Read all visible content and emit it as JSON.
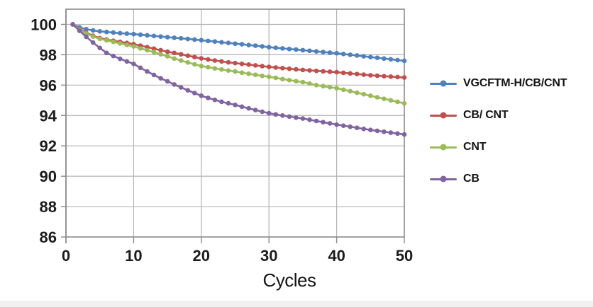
{
  "chart_data": {
    "type": "line",
    "title": "",
    "xlabel": "Cycles",
    "ylabel": "",
    "xlim": [
      0,
      50
    ],
    "ylim": [
      86,
      101
    ],
    "x_ticks": [
      0,
      10,
      20,
      30,
      40,
      50
    ],
    "y_ticks": [
      86,
      88,
      90,
      92,
      94,
      96,
      98,
      100
    ],
    "grid": true,
    "legend_position": "right",
    "x": [
      1,
      2,
      3,
      4,
      5,
      6,
      7,
      8,
      9,
      10,
      11,
      12,
      13,
      14,
      15,
      16,
      17,
      18,
      19,
      20,
      21,
      22,
      23,
      24,
      25,
      26,
      27,
      28,
      29,
      30,
      31,
      32,
      33,
      34,
      35,
      36,
      37,
      38,
      39,
      40,
      41,
      42,
      43,
      44,
      45,
      46,
      47,
      48,
      49,
      50
    ],
    "series": [
      {
        "name": "VGCFTM-H/CB/CNT",
        "color": "#4f81bd",
        "values": [
          100,
          99.8,
          99.68,
          99.6,
          99.54,
          99.5,
          99.46,
          99.42,
          99.39,
          99.36,
          99.32,
          99.28,
          99.24,
          99.2,
          99.16,
          99.12,
          99.08,
          99.04,
          99.0,
          98.96,
          98.91,
          98.87,
          98.82,
          98.78,
          98.73,
          98.69,
          98.64,
          98.6,
          98.55,
          98.5,
          98.46,
          98.42,
          98.38,
          98.34,
          98.3,
          98.26,
          98.22,
          98.18,
          98.14,
          98.1,
          98.05,
          98.0,
          97.95,
          97.9,
          97.85,
          97.8,
          97.75,
          97.7,
          97.65,
          97.6
        ]
      },
      {
        "name": "CB/ CNT",
        "color": "#c0504d",
        "values": [
          100,
          99.7,
          99.45,
          99.25,
          99.1,
          99.0,
          98.92,
          98.85,
          98.78,
          98.7,
          98.6,
          98.5,
          98.4,
          98.3,
          98.2,
          98.12,
          98.03,
          97.94,
          97.85,
          97.76,
          97.69,
          97.62,
          97.56,
          97.5,
          97.45,
          97.4,
          97.35,
          97.3,
          97.25,
          97.2,
          97.16,
          97.12,
          97.08,
          97.04,
          97.0,
          96.97,
          96.94,
          96.91,
          96.88,
          96.85,
          96.81,
          96.77,
          96.73,
          96.69,
          96.65,
          96.62,
          96.59,
          96.56,
          96.53,
          96.5
        ]
      },
      {
        "name": "CNT",
        "color": "#9bbb59",
        "values": [
          100,
          99.65,
          99.4,
          99.2,
          99.05,
          98.95,
          98.85,
          98.75,
          98.65,
          98.55,
          98.42,
          98.3,
          98.17,
          98.03,
          97.9,
          97.75,
          97.62,
          97.49,
          97.37,
          97.26,
          97.18,
          97.1,
          97.03,
          96.96,
          96.9,
          96.82,
          96.75,
          96.68,
          96.61,
          96.55,
          96.48,
          96.4,
          96.33,
          96.26,
          96.2,
          96.1,
          96.0,
          95.93,
          95.86,
          95.8,
          95.7,
          95.6,
          95.5,
          95.4,
          95.3,
          95.2,
          95.1,
          95.0,
          94.9,
          94.8
        ]
      },
      {
        "name": "CB",
        "color": "#8064a2",
        "values": [
          100,
          99.58,
          99.18,
          98.8,
          98.45,
          98.12,
          97.92,
          97.73,
          97.56,
          97.4,
          97.14,
          96.9,
          96.67,
          96.45,
          96.25,
          96.04,
          95.85,
          95.66,
          95.48,
          95.3,
          95.16,
          95.03,
          94.9,
          94.8,
          94.7,
          94.58,
          94.47,
          94.36,
          94.25,
          94.15,
          94.07,
          94.0,
          93.93,
          93.86,
          93.8,
          93.72,
          93.64,
          93.56,
          93.48,
          93.4,
          93.33,
          93.26,
          93.19,
          93.12,
          93.05,
          92.99,
          92.93,
          92.87,
          92.81,
          92.75
        ]
      }
    ]
  },
  "colors": {
    "gridline": "#b3b3b3",
    "plot_border": "#8a8a8a",
    "tick_text": "#1c1c1c"
  }
}
